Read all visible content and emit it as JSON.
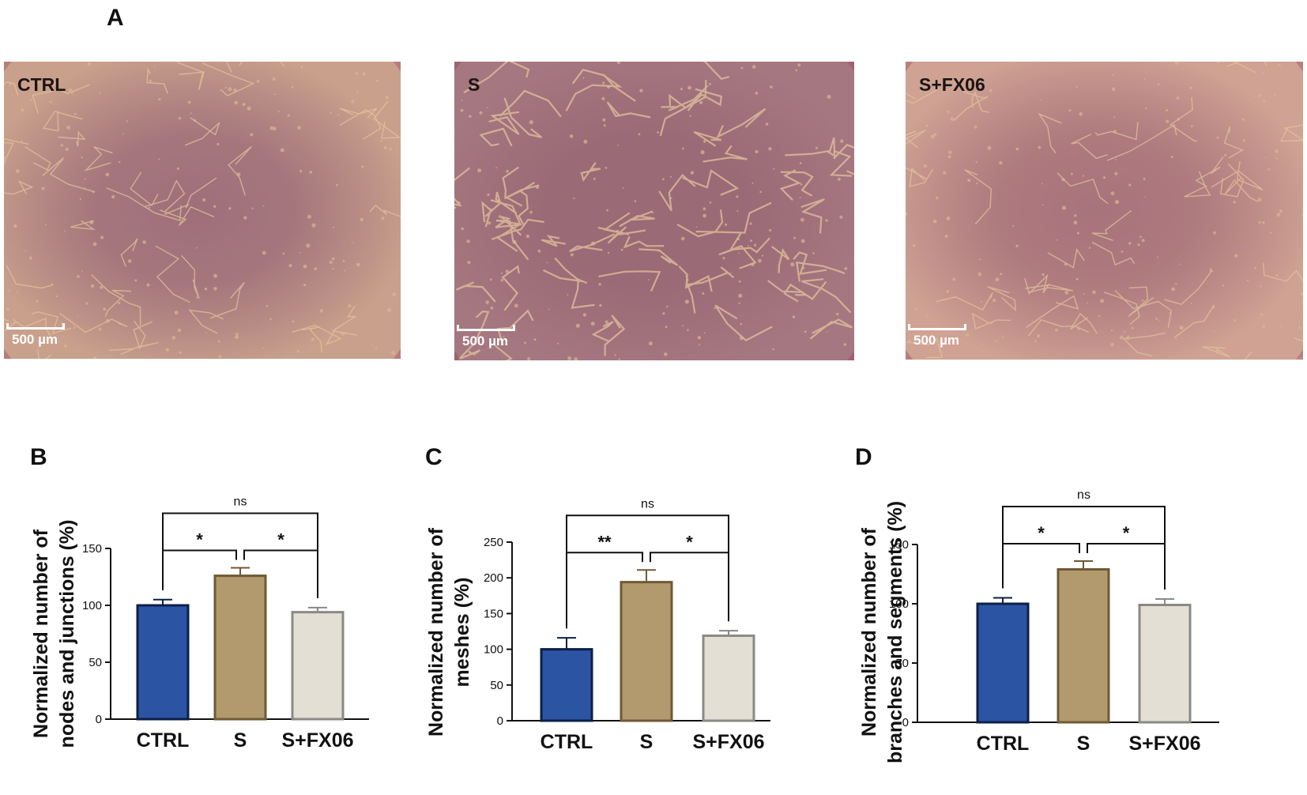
{
  "panels": {
    "A": "A",
    "B": "B",
    "C": "C",
    "D": "D"
  },
  "micrographs": [
    {
      "label": "CTRL",
      "scale": "500 µm",
      "tint": "#c9a08c",
      "center": "#9e6f7a"
    },
    {
      "label": "S",
      "scale": "500 µm",
      "tint": "#a57780",
      "center": "#9a6a76"
    },
    {
      "label": "S+FX06",
      "scale": "500 µm",
      "tint": "#cfa293",
      "center": "#a8737b"
    }
  ],
  "colors": {
    "ctrl_fill": "#2b54a3",
    "s_fill": "#b39a6e",
    "sfx_fill": "#e3dfd4",
    "ctrl_stroke": "#0d1f48",
    "s_stroke": "#6e5a35",
    "sfx_stroke": "#8a8a85"
  },
  "chart_data": [
    {
      "type": "bar",
      "panel": "B",
      "ylabel_lines": [
        "Normalized number of",
        "nodes and junctions (%)"
      ],
      "categories": [
        "CTRL",
        "S",
        "S+FX06"
      ],
      "values": [
        100,
        126,
        94
      ],
      "errors": [
        5,
        7,
        4
      ],
      "ylim": [
        0,
        150
      ],
      "yticks": [
        "0",
        "50",
        "100",
        "150"
      ],
      "comparisons": [
        {
          "from": 0,
          "to": 1,
          "label": "*"
        },
        {
          "from": 1,
          "to": 2,
          "label": "*"
        },
        {
          "from": 0,
          "to": 2,
          "label": "ns"
        }
      ]
    },
    {
      "type": "bar",
      "panel": "C",
      "ylabel_lines": [
        "Normalized number of",
        "meshes (%)"
      ],
      "categories": [
        "CTRL",
        "S",
        "S+FX06"
      ],
      "values": [
        100,
        194,
        119
      ],
      "errors": [
        16,
        17,
        7
      ],
      "ylim": [
        0,
        250
      ],
      "yticks": [
        "0",
        "50",
        "100",
        "150",
        "200",
        "250"
      ],
      "comparisons": [
        {
          "from": 0,
          "to": 1,
          "label": "**"
        },
        {
          "from": 1,
          "to": 2,
          "label": "*"
        },
        {
          "from": 0,
          "to": 2,
          "label": "ns"
        }
      ]
    },
    {
      "type": "bar",
      "panel": "D",
      "ylabel_lines": [
        "Normalized number of",
        "branches and segments (%)"
      ],
      "categories": [
        "CTRL",
        "S",
        "S+FX06"
      ],
      "values": [
        100,
        129,
        99
      ],
      "errors": [
        5,
        7,
        5
      ],
      "ylim": [
        0,
        150
      ],
      "yticks": [
        "0",
        "50",
        "100",
        "150"
      ],
      "comparisons": [
        {
          "from": 0,
          "to": 1,
          "label": "*"
        },
        {
          "from": 1,
          "to": 2,
          "label": "*"
        },
        {
          "from": 0,
          "to": 2,
          "label": "ns"
        }
      ]
    }
  ]
}
